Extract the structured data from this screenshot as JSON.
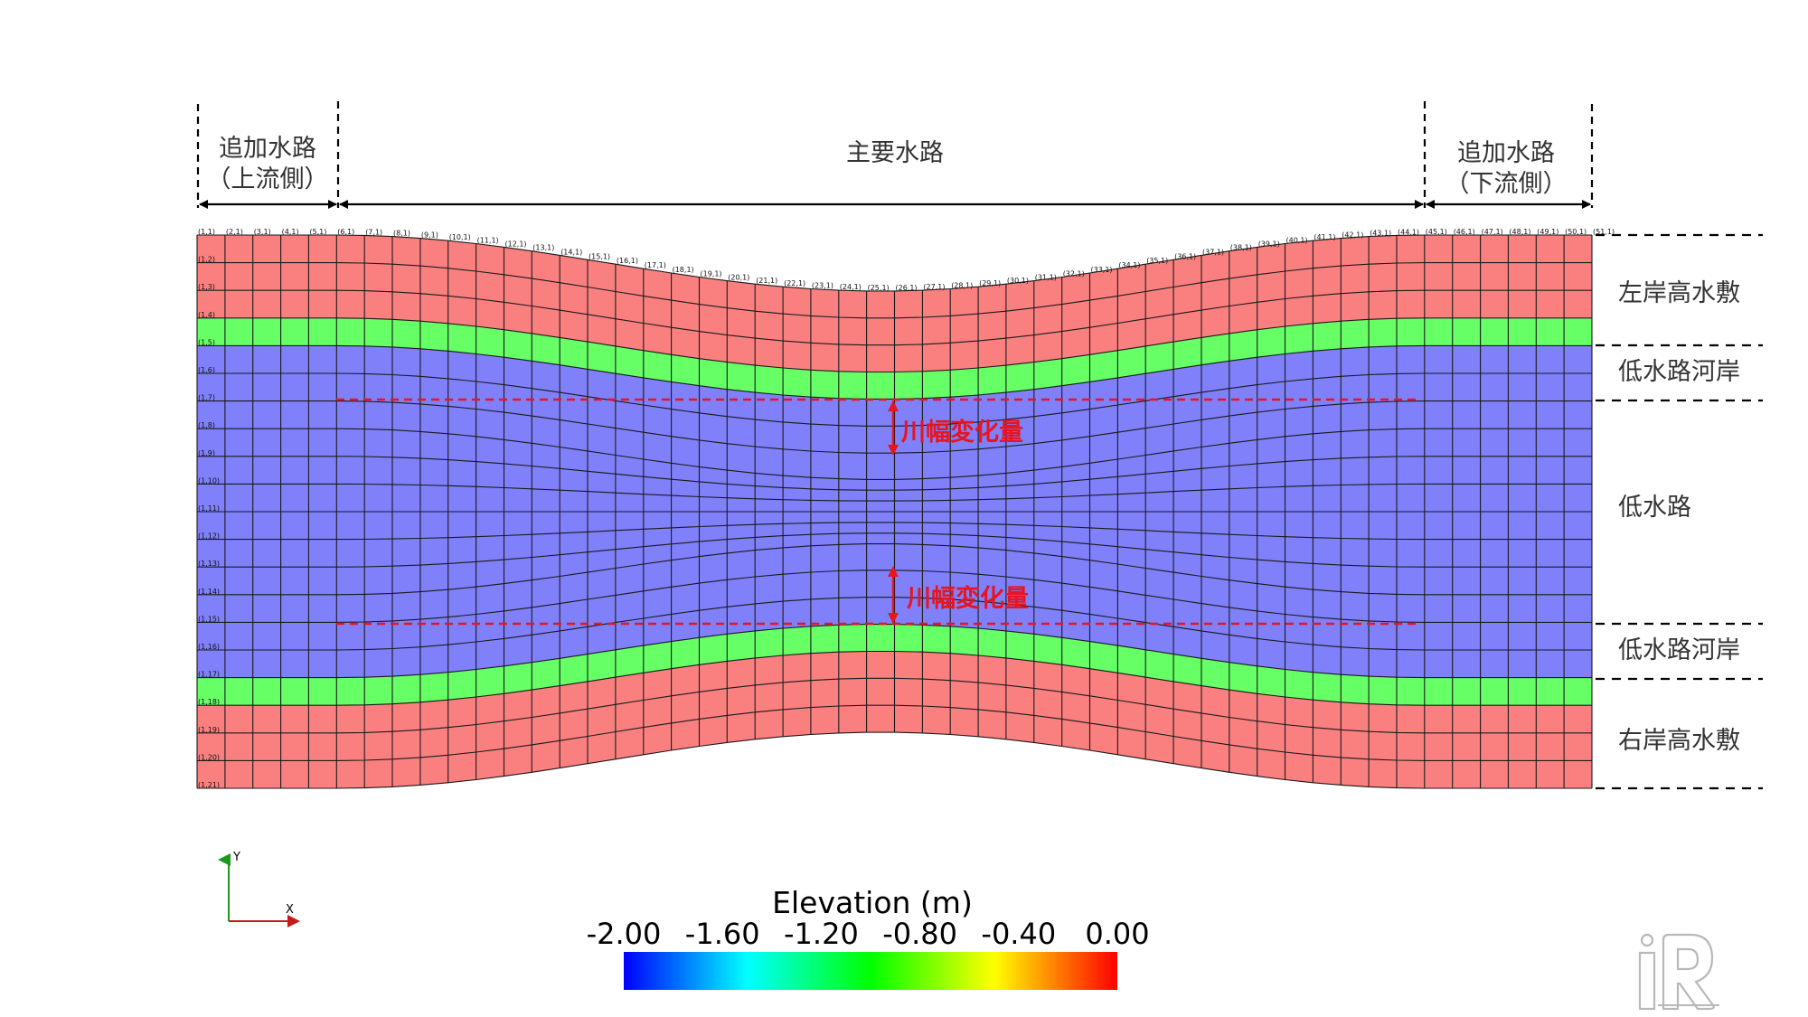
{
  "header": {
    "upstream_label_line1": "追加水路",
    "upstream_label_line2": "（上流側）",
    "main_label": "主要水路",
    "downstream_label_line1": "追加水路",
    "downstream_label_line2": "（下流側）"
  },
  "zones": {
    "left_floodplain": "左岸高水敷",
    "low_channel_bank_upper": "低水路河岸",
    "low_channel": "低水路",
    "low_channel_bank_lower": "低水路河岸",
    "right_floodplain": "右岸高水敷"
  },
  "annotations": {
    "width_change_upper": "川幅変化量",
    "width_change_lower": "川幅変化量"
  },
  "axes_triad": {
    "y_label": "Y",
    "x_label": "X"
  },
  "colorbar": {
    "title": "Elevation (m)",
    "ticks": [
      "-2.00",
      "-1.60",
      "-1.20",
      "-0.80",
      "-0.40",
      "0.00"
    ],
    "colormap": [
      "#0000ff",
      "#00ffff",
      "#00ff00",
      "#ffff00",
      "#ff0000"
    ]
  },
  "colors": {
    "floodplain": "#fa8080",
    "channel": "#8080fa",
    "bank_green": "#66ff66",
    "annotation_red": "#e8141e",
    "triad_y": "#1a9a1a",
    "triad_x": "#c41a1a"
  },
  "grid": {
    "i_count": 51,
    "j_count": 21,
    "bottom_labels": [
      "(1,1)",
      "(2,1)",
      "(3,1)",
      "(4,1)",
      "(5,1)",
      "(6,1)",
      "(7,1)",
      "(8,1)",
      "(9,1)",
      "(10,1)",
      "(11,1)",
      "(12,1)",
      "(13,1)",
      "(14,1)",
      "(15,1)",
      "(16,1)",
      "(17,1)",
      "(18,1)",
      "(19,1)",
      "(20,1)",
      "(21,1)",
      "(22,1)",
      "(23,1)",
      "(24,1)",
      "(25,1)",
      "(26,1)",
      "(27,1)",
      "(28,1)",
      "(29,1)",
      "(30,1)",
      "(31,1)",
      "(32,1)",
      "(33,1)",
      "(34,1)",
      "(35,1)",
      "(36,1)",
      "(37,1)",
      "(38,1)",
      "(39,1)",
      "(40,1)",
      "(41,1)",
      "(42,1)",
      "(43,1)",
      "(44,1)",
      "(45,1)",
      "(46,1)",
      "(47,1)",
      "(48,1)",
      "(49,1)",
      "(50,1)",
      "(51,1)"
    ],
    "left_labels": [
      "(1,2)",
      "(1,3)",
      "(1,4)",
      "(1,5)",
      "(1,6)",
      "(1,7)",
      "(1,8)",
      "(1,9)",
      "(1,10)",
      "(1,11)",
      "(1,12)",
      "(1,13)",
      "(1,14)",
      "(1,15)",
      "(1,16)",
      "(1,17)",
      "(1,18)",
      "(1,19)",
      "(1,20)",
      "(1,21)"
    ]
  },
  "logo": {
    "text": "iRIC"
  }
}
